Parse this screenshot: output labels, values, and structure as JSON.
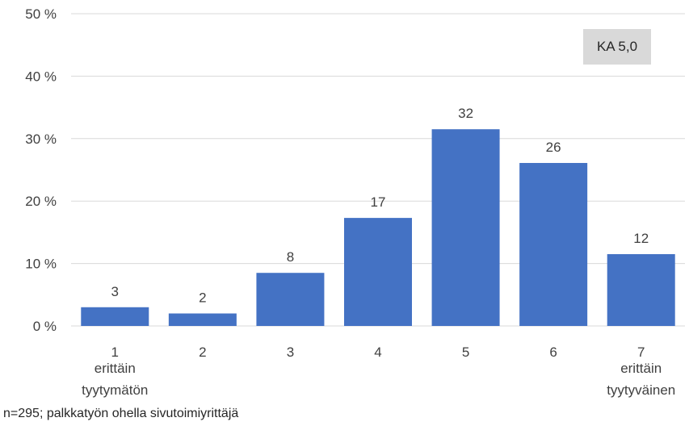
{
  "chart_data": {
    "type": "bar",
    "title": "",
    "categories": [
      "1",
      "2",
      "3",
      "4",
      "5",
      "6",
      "7"
    ],
    "category_sublabels": [
      "erittäin tyytymätön",
      "",
      "",
      "",
      "",
      "",
      "erittäin tyytyväinen"
    ],
    "values": [
      3,
      2,
      8,
      17,
      32,
      26,
      12
    ],
    "bar_values_precise": [
      3.0,
      2.0,
      8.5,
      17.3,
      31.5,
      26.1,
      11.5
    ],
    "yticks": [
      "0 %",
      "10 %",
      "20 %",
      "30 %",
      "40 %",
      "50 %"
    ],
    "ylim": [
      0,
      50
    ],
    "ylabel": "",
    "xlabel": "",
    "grid": true,
    "bar_color": "#4472c4"
  },
  "annotation": {
    "mean_label": "KA 5,0"
  },
  "footnote": "n=295; palkkatyön ohella sivutoimiyrittäjä"
}
